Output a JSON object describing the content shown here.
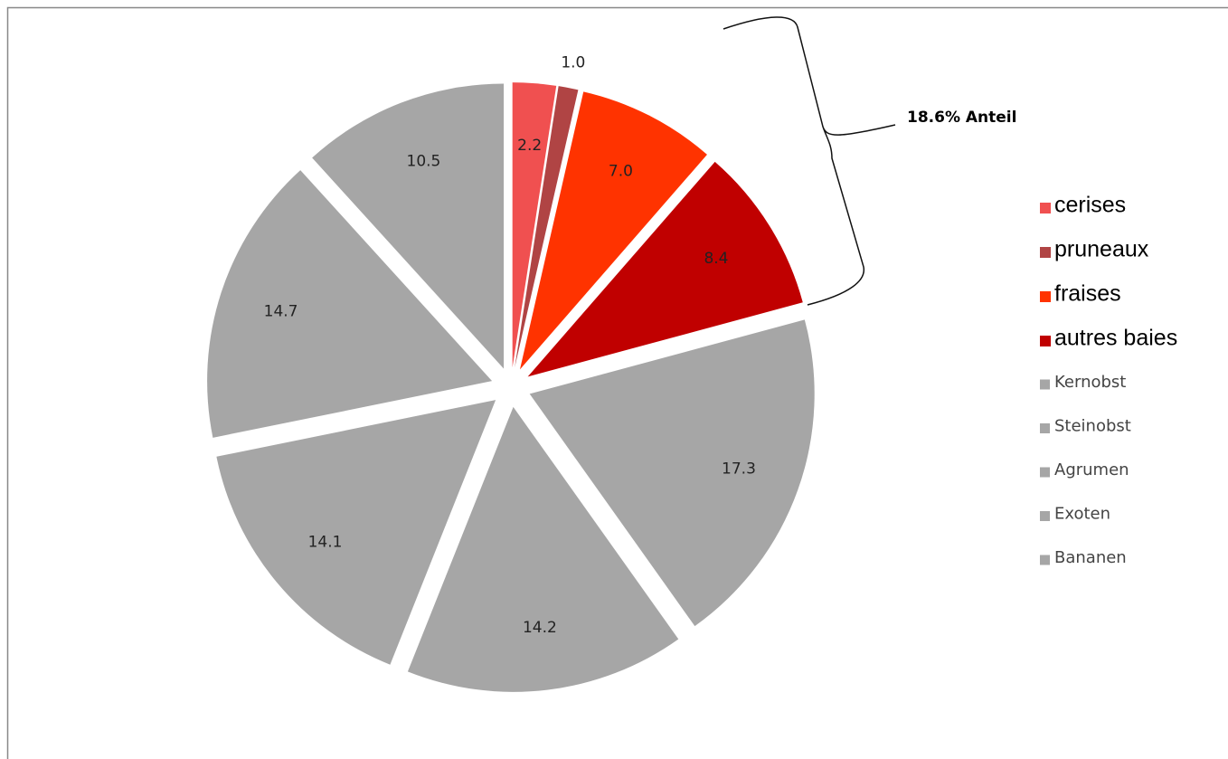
{
  "chart_data": {
    "type": "pie",
    "categories": [
      "cerises",
      "pruneaux",
      "fraises",
      "autres baies",
      "Kernobst",
      "Steinobst",
      "Agrumen",
      "Exoten",
      "Bananen"
    ],
    "values": [
      2.2,
      1.0,
      7.0,
      8.4,
      17.3,
      14.2,
      14.1,
      14.7,
      10.5
    ],
    "value_labels": [
      "2.2",
      "1.0",
      "7.0",
      "8.4",
      "17.3",
      "14.2",
      "14.1",
      "14.7",
      "10.5"
    ],
    "colors": [
      "#f05050",
      "#b04444",
      "#ff3300",
      "#c00000",
      "#a6a6a6",
      "#a6a6a6",
      "#a6a6a6",
      "#a6a6a6",
      "#a6a6a6"
    ],
    "annotation": "18.6% Anteil",
    "legend": "right"
  }
}
